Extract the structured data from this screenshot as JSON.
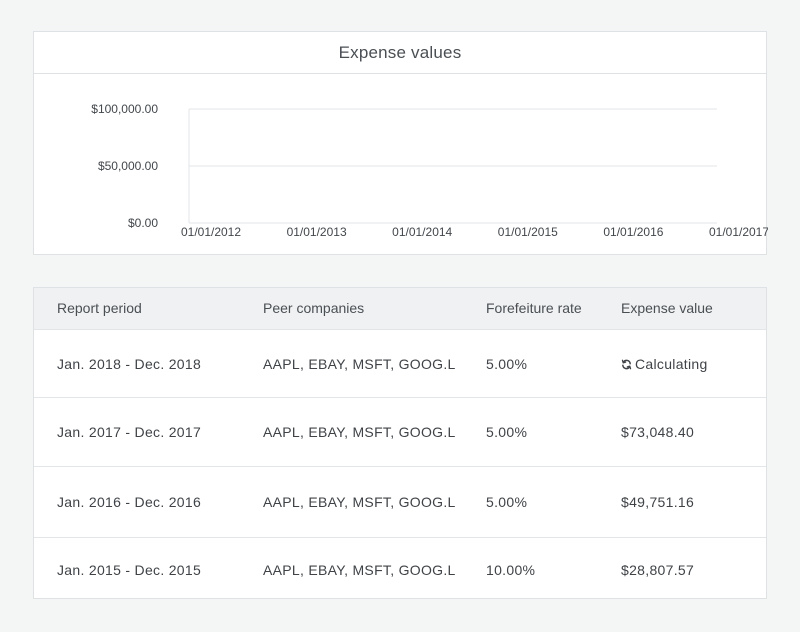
{
  "chart": {
    "title": "Expense values"
  },
  "chart_data": {
    "type": "line",
    "title": "Expense values",
    "xlabel": "",
    "ylabel": "",
    "x": [
      "01/01/2012",
      "01/01/2013",
      "01/01/2014",
      "01/01/2015",
      "01/01/2016",
      "01/01/2017"
    ],
    "ytick_labels": [
      "$100,000.00",
      "$50,000.00",
      "$0.00"
    ],
    "ylim": [
      0,
      100000
    ],
    "series": [],
    "grid": true
  },
  "table": {
    "headers": {
      "period": "Report period",
      "peers": "Peer companies",
      "rate": "Forefeiture rate",
      "value": "Expense value"
    },
    "rows": [
      {
        "period": "Jan. 2018 - Dec. 2018",
        "peers": "AAPL, EBAY, MSFT, GOOG.L",
        "rate": "5.00%",
        "value": "Calculating",
        "status": "calculating"
      },
      {
        "period": "Jan. 2017 - Dec. 2017",
        "peers": "AAPL, EBAY, MSFT, GOOG.L",
        "rate": "5.00%",
        "value": "$73,048.40"
      },
      {
        "period": "Jan. 2016 - Dec. 2016",
        "peers": "AAPL, EBAY, MSFT, GOOG.L",
        "rate": "5.00%",
        "value": "$49,751.16"
      },
      {
        "period": "Jan. 2015 - Dec. 2015",
        "peers": "AAPL, EBAY, MSFT, GOOG.L",
        "rate": "10.00%",
        "value": "$28,807.57"
      }
    ]
  },
  "icons": {
    "calculating": "refresh-icon"
  },
  "colors": {
    "background": "#f4f5f5",
    "card": "#ffffff",
    "border": "#dfe2e5",
    "header_bg": "#f0f1f2",
    "text": "#3f4347"
  }
}
